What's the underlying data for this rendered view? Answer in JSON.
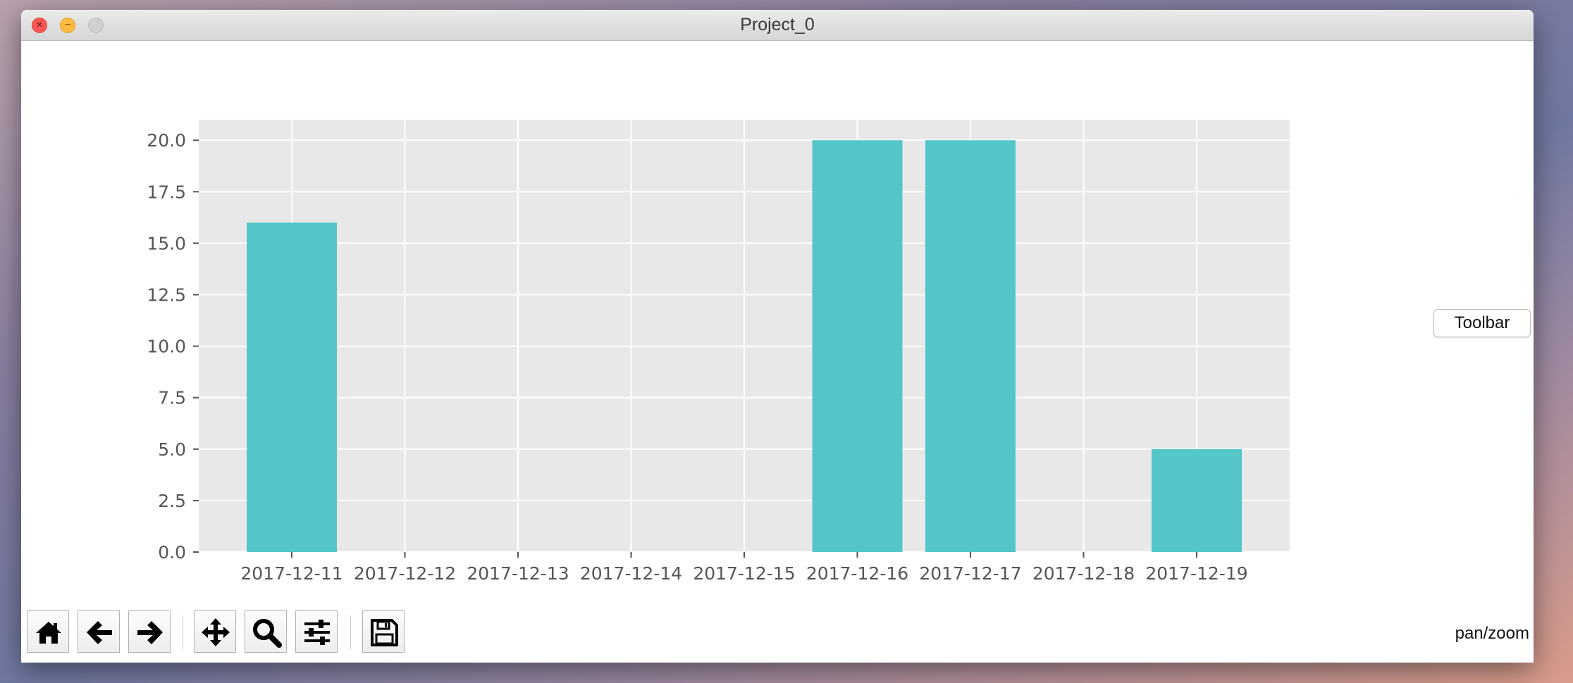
{
  "window": {
    "title": "Project_0"
  },
  "side_button": {
    "label": "Toolbar"
  },
  "status": {
    "mode": "pan/zoom"
  },
  "toolbar": {
    "buttons": [
      {
        "name": "home-button",
        "icon": "home-icon"
      },
      {
        "name": "back-button",
        "icon": "arrow-left-icon"
      },
      {
        "name": "forward-button",
        "icon": "arrow-right-icon"
      },
      {
        "name": "pan-button",
        "icon": "move-arrows-icon"
      },
      {
        "name": "zoom-button",
        "icon": "magnifier-icon"
      },
      {
        "name": "configure-subplots-button",
        "icon": "sliders-icon"
      },
      {
        "name": "save-button",
        "icon": "floppy-disk-icon"
      }
    ]
  },
  "chart_data": {
    "type": "bar",
    "categories": [
      "2017-12-11",
      "2017-12-12",
      "2017-12-13",
      "2017-12-14",
      "2017-12-15",
      "2017-12-16",
      "2017-12-17",
      "2017-12-18",
      "2017-12-19"
    ],
    "values": [
      16,
      0,
      0,
      0,
      0,
      20,
      20,
      0,
      5
    ],
    "y_ticks": [
      "0.0",
      "2.5",
      "5.0",
      "7.5",
      "10.0",
      "12.5",
      "15.0",
      "17.5",
      "20.0"
    ],
    "ylim": [
      0,
      21
    ],
    "grid": true,
    "colors": {
      "bar": "#54c5c9",
      "plot_background": "#e8e8e8",
      "grid": "#ffffff"
    }
  }
}
